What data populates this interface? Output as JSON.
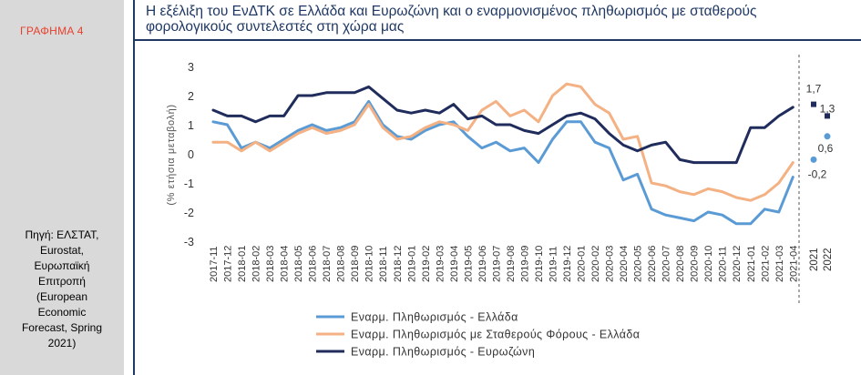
{
  "sidebar": {
    "figure_label": "ΓΡΑΦΗΜΑ 4",
    "source_lines": [
      "Πηγή: ΕΛΣΤΑΤ,",
      "Eurostat,",
      "Ευρωπαϊκή",
      "Επιτροπή",
      "(European",
      "Economic",
      "Forecast, Spring",
      "2021)"
    ]
  },
  "title": "Η εξέλιξη του ΕνΔΤΚ σε Ελλάδα και Ευρωζώνη και ο εναρμονισμένος πληθωρισμός με σταθερούς φορολογικούς συντελεστές στη χώρα μας",
  "chart_data": {
    "type": "line",
    "ylabel": "(% ετήσια μεταβολή)",
    "ylim": [
      -3,
      3
    ],
    "yticks": [
      3,
      2,
      1,
      0,
      -1,
      -2,
      -3
    ],
    "grid": false,
    "legend_position": "bottom",
    "categories": [
      "2017-11",
      "2017-12",
      "2018-01",
      "2018-02",
      "2018-03",
      "2018-04",
      "2018-05",
      "2018-06",
      "2018-07",
      "2018-08",
      "2018-09",
      "2018-10",
      "2018-11",
      "2018-12",
      "2019-01",
      "2019-02",
      "2019-03",
      "2019-04",
      "2019-05",
      "2019-06",
      "2019-07",
      "2019-08",
      "2019-09",
      "2019-10",
      "2019-11",
      "2019-12",
      "2020-01",
      "2020-02",
      "2020-03",
      "2020-04",
      "2020-05",
      "2020-06",
      "2020-07",
      "2020-08",
      "2020-09",
      "2020-10",
      "2020-11",
      "2020-12",
      "2021-01",
      "2021-02",
      "2021-03",
      "2021-04"
    ],
    "series": [
      {
        "name": "Εναρμ. Πληθωρισμός - Ελλάδα",
        "color": "#5b9bd5",
        "values": [
          1.1,
          1.0,
          0.2,
          0.4,
          0.2,
          0.5,
          0.8,
          1.0,
          0.8,
          0.9,
          1.1,
          1.8,
          1.0,
          0.6,
          0.5,
          0.8,
          1.0,
          1.1,
          0.6,
          0.2,
          0.4,
          0.1,
          0.2,
          -0.3,
          0.5,
          1.1,
          1.1,
          0.4,
          0.2,
          -0.9,
          -0.7,
          -1.9,
          -2.1,
          -2.2,
          -2.3,
          -2.0,
          -2.1,
          -2.4,
          -2.4,
          -1.9,
          -2.0,
          -0.8
        ]
      },
      {
        "name": "Εναρμ. Πληθωρισμός με Σταθερούς Φόρους - Ελλάδα",
        "color": "#f4b183",
        "values": [
          0.4,
          0.4,
          0.1,
          0.4,
          0.1,
          0.4,
          0.7,
          0.9,
          0.7,
          0.8,
          1.0,
          1.7,
          0.9,
          0.5,
          0.6,
          0.9,
          1.1,
          1.0,
          0.8,
          1.5,
          1.8,
          1.3,
          1.5,
          1.1,
          2.0,
          2.4,
          2.3,
          1.7,
          1.4,
          0.5,
          0.6,
          -1.0,
          -1.1,
          -1.3,
          -1.4,
          -1.2,
          -1.3,
          -1.5,
          -1.6,
          -1.4,
          -1.0,
          -0.3
        ]
      },
      {
        "name": "Εναρμ. Πληθωρισμός - Ευρωζώνη",
        "color": "#1f2c5c",
        "values": [
          1.5,
          1.3,
          1.3,
          1.1,
          1.3,
          1.3,
          2.0,
          2.0,
          2.1,
          2.1,
          2.1,
          2.3,
          1.9,
          1.5,
          1.4,
          1.5,
          1.4,
          1.7,
          1.2,
          1.3,
          1.0,
          1.0,
          0.8,
          0.7,
          1.0,
          1.3,
          1.4,
          1.2,
          0.7,
          0.3,
          0.1,
          0.3,
          0.4,
          -0.2,
          -0.3,
          -0.3,
          -0.3,
          -0.3,
          0.9,
          0.9,
          1.3,
          1.6
        ]
      }
    ],
    "forecast_categories": [
      "2021",
      "2022"
    ],
    "forecast_points": [
      {
        "series": "Εναρμ. Πληθωρισμός - Ελλάδα",
        "values": [
          -0.2,
          0.6
        ],
        "labels": [
          "-0,2",
          "0,6"
        ]
      },
      {
        "series": "Εναρμ. Πληθωρισμός - Ευρωζώνη",
        "values": [
          1.7,
          1.3
        ],
        "labels": [
          "1,7",
          "1,3"
        ]
      }
    ]
  }
}
